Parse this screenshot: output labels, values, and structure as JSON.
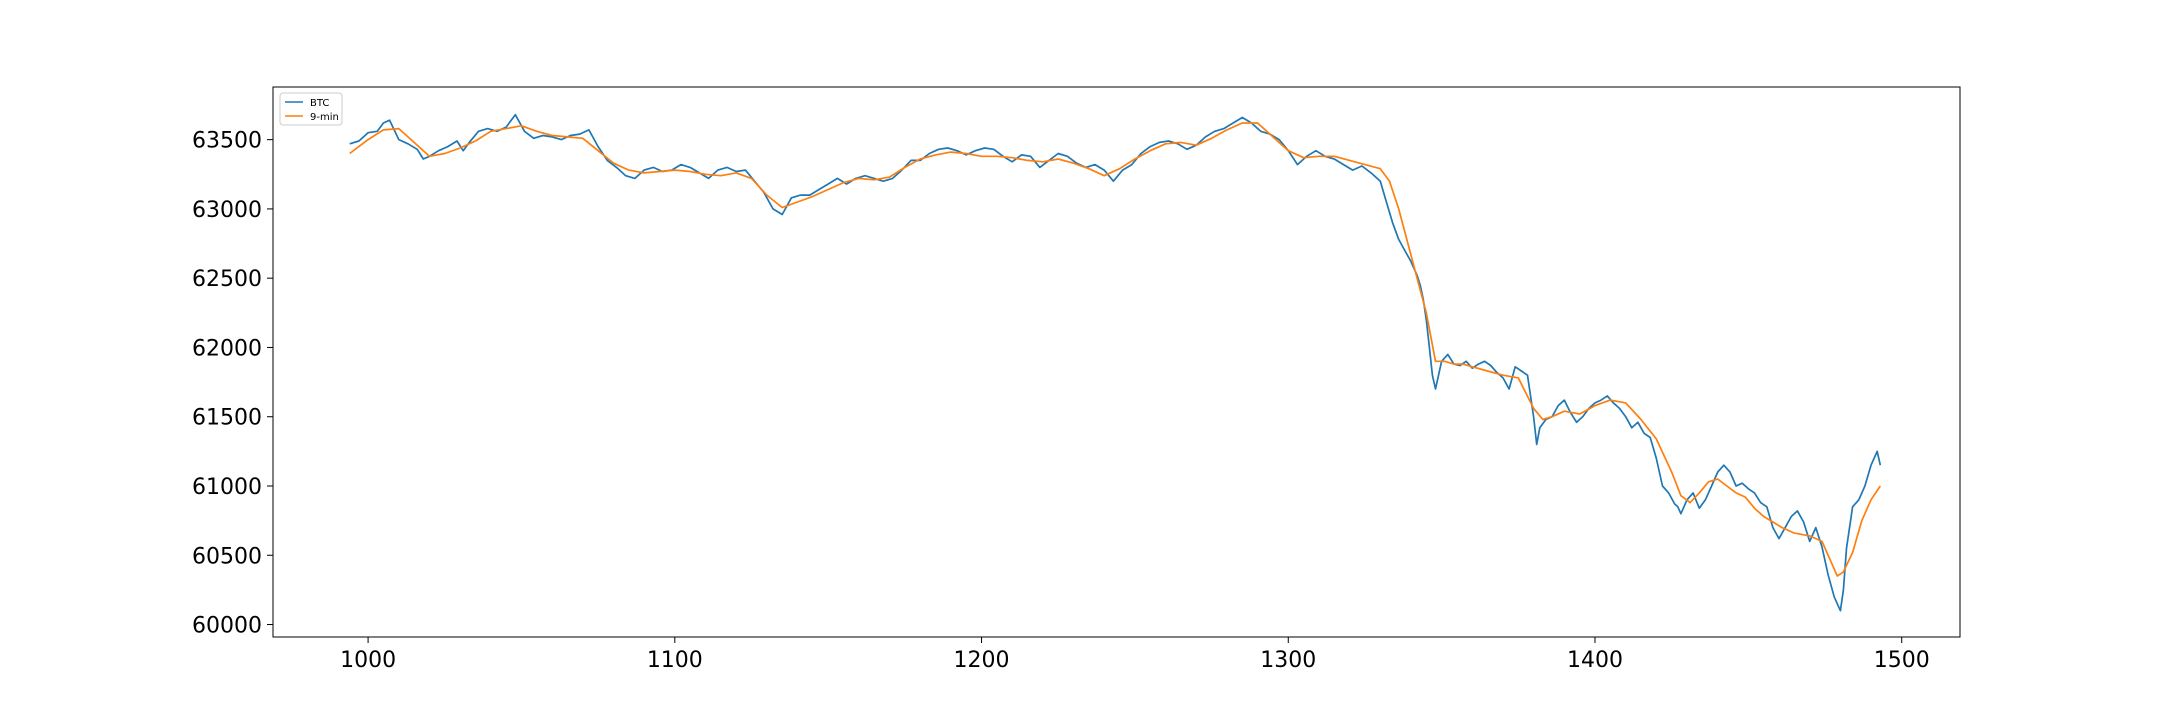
{
  "chart_data": {
    "type": "line",
    "title": "",
    "xlabel": "",
    "ylabel": "",
    "xlim": [
      969,
      1519
    ],
    "ylim": [
      59910,
      63880
    ],
    "grid": false,
    "legend": "top-left",
    "x_ticks": [
      1000,
      1100,
      1200,
      1300,
      1400,
      1500
    ],
    "y_ticks": [
      60000,
      60500,
      61000,
      61500,
      62000,
      62500,
      63000,
      63500
    ],
    "x_tick_labels": [
      "1000",
      "1100",
      "1200",
      "1300",
      "1400",
      "1500"
    ],
    "y_tick_labels": [
      "60000",
      "60500",
      "61000",
      "61500",
      "62000",
      "62500",
      "63000",
      "63500"
    ],
    "series": [
      {
        "name": "BTC",
        "color": "#1f77b4",
        "x": [
          994,
          997,
          1000,
          1003,
          1005,
          1007,
          1010,
          1013,
          1016,
          1018,
          1020,
          1023,
          1026,
          1029,
          1031,
          1033,
          1036,
          1039,
          1042,
          1045,
          1048,
          1051,
          1054,
          1057,
          1060,
          1063,
          1066,
          1069,
          1072,
          1075,
          1078,
          1081,
          1084,
          1087,
          1090,
          1093,
          1096,
          1099,
          1102,
          1105,
          1108,
          1111,
          1114,
          1117,
          1120,
          1123,
          1126,
          1129,
          1132,
          1135,
          1138,
          1141,
          1144,
          1147,
          1150,
          1153,
          1156,
          1159,
          1162,
          1165,
          1168,
          1171,
          1174,
          1177,
          1180,
          1183,
          1186,
          1189,
          1192,
          1195,
          1198,
          1201,
          1204,
          1207,
          1210,
          1213,
          1216,
          1219,
          1222,
          1225,
          1228,
          1231,
          1234,
          1237,
          1240,
          1243,
          1246,
          1249,
          1252,
          1255,
          1258,
          1261,
          1264,
          1267,
          1270,
          1273,
          1276,
          1279,
          1282,
          1285,
          1288,
          1291,
          1294,
          1297,
          1300,
          1303,
          1306,
          1309,
          1312,
          1315,
          1318,
          1321,
          1324,
          1327,
          1330,
          1332,
          1334,
          1336,
          1338,
          1340,
          1342,
          1343,
          1344,
          1345,
          1346,
          1347,
          1348,
          1350,
          1352,
          1354,
          1356,
          1358,
          1360,
          1362,
          1364,
          1366,
          1368,
          1370,
          1372,
          1374,
          1376,
          1378,
          1380,
          1381,
          1382,
          1384,
          1386,
          1388,
          1390,
          1392,
          1394,
          1396,
          1398,
          1400,
          1402,
          1404,
          1406,
          1408,
          1410,
          1412,
          1414,
          1416,
          1418,
          1420,
          1422,
          1424,
          1426,
          1427,
          1428,
          1430,
          1432,
          1434,
          1436,
          1438,
          1440,
          1442,
          1444,
          1446,
          1448,
          1450,
          1452,
          1454,
          1456,
          1458,
          1460,
          1462,
          1464,
          1466,
          1468,
          1470,
          1472,
          1474,
          1476,
          1478,
          1479,
          1480,
          1481,
          1482,
          1484,
          1486,
          1488,
          1490,
          1492,
          1493
        ],
        "values": [
          63470,
          63490,
          63550,
          63560,
          63620,
          63640,
          63500,
          63470,
          63430,
          63360,
          63380,
          63420,
          63450,
          63490,
          63420,
          63480,
          63560,
          63580,
          63560,
          63590,
          63680,
          63560,
          63510,
          63530,
          63520,
          63500,
          63530,
          63540,
          63570,
          63450,
          63350,
          63300,
          63240,
          63220,
          63280,
          63300,
          63270,
          63280,
          63320,
          63300,
          63260,
          63220,
          63280,
          63300,
          63270,
          63280,
          63200,
          63120,
          63000,
          62960,
          63080,
          63100,
          63100,
          63140,
          63180,
          63220,
          63180,
          63220,
          63240,
          63220,
          63200,
          63220,
          63280,
          63350,
          63350,
          63400,
          63430,
          63440,
          63420,
          63390,
          63420,
          63440,
          63430,
          63380,
          63340,
          63390,
          63380,
          63300,
          63350,
          63400,
          63380,
          63330,
          63300,
          63320,
          63280,
          63200,
          63280,
          63320,
          63400,
          63450,
          63480,
          63490,
          63470,
          63430,
          63460,
          63520,
          63560,
          63580,
          63620,
          63660,
          63620,
          63560,
          63540,
          63500,
          63420,
          63320,
          63380,
          63420,
          63380,
          63360,
          63320,
          63280,
          63310,
          63260,
          63200,
          63050,
          62900,
          62780,
          62700,
          62620,
          62520,
          62450,
          62350,
          62200,
          62000,
          61800,
          61700,
          61900,
          61950,
          61880,
          61870,
          61900,
          61850,
          61880,
          61900,
          61870,
          61820,
          61780,
          61700,
          61860,
          61830,
          61800,
          61500,
          61300,
          61420,
          61480,
          61500,
          61580,
          61620,
          61530,
          61460,
          61500,
          61560,
          61600,
          61620,
          61650,
          61600,
          61560,
          61500,
          61420,
          61460,
          61380,
          61350,
          61200,
          61000,
          60950,
          60870,
          60850,
          60800,
          60900,
          60950,
          60840,
          60900,
          61000,
          61100,
          61150,
          61100,
          61000,
          61020,
          60980,
          60950,
          60880,
          60850,
          60700,
          60620,
          60700,
          60780,
          60820,
          60740,
          60600,
          60700,
          60560,
          60360,
          60200,
          60150,
          60100,
          60250,
          60550,
          60850,
          60900,
          61000,
          61150,
          61250,
          61150
        ]
      },
      {
        "name": "9-min",
        "color": "#ff7f0e",
        "x": [
          994,
          1000,
          1005,
          1010,
          1015,
          1020,
          1025,
          1030,
          1035,
          1040,
          1045,
          1050,
          1055,
          1060,
          1065,
          1070,
          1075,
          1080,
          1085,
          1090,
          1095,
          1100,
          1105,
          1110,
          1115,
          1120,
          1125,
          1130,
          1135,
          1140,
          1145,
          1150,
          1155,
          1160,
          1165,
          1170,
          1175,
          1180,
          1185,
          1190,
          1195,
          1200,
          1205,
          1210,
          1215,
          1220,
          1225,
          1230,
          1235,
          1240,
          1245,
          1250,
          1255,
          1260,
          1265,
          1270,
          1275,
          1280,
          1285,
          1290,
          1295,
          1300,
          1305,
          1310,
          1315,
          1320,
          1325,
          1330,
          1333,
          1336,
          1339,
          1342,
          1345,
          1348,
          1351,
          1354,
          1357,
          1360,
          1365,
          1370,
          1375,
          1380,
          1383,
          1386,
          1390,
          1395,
          1400,
          1405,
          1410,
          1415,
          1420,
          1425,
          1428,
          1431,
          1434,
          1437,
          1440,
          1443,
          1446,
          1449,
          1452,
          1455,
          1458,
          1461,
          1465,
          1470,
          1474,
          1477,
          1479,
          1481,
          1484,
          1487,
          1490,
          1493
        ],
        "values": [
          63400,
          63500,
          63570,
          63580,
          63480,
          63380,
          63400,
          63440,
          63490,
          63560,
          63580,
          63600,
          63560,
          63530,
          63520,
          63510,
          63420,
          63330,
          63280,
          63260,
          63270,
          63280,
          63270,
          63250,
          63240,
          63260,
          63220,
          63100,
          63010,
          63050,
          63090,
          63140,
          63190,
          63220,
          63210,
          63230,
          63300,
          63360,
          63390,
          63410,
          63400,
          63380,
          63380,
          63370,
          63350,
          63340,
          63360,
          63330,
          63290,
          63240,
          63290,
          63360,
          63420,
          63470,
          63480,
          63460,
          63510,
          63570,
          63620,
          63620,
          63520,
          63420,
          63370,
          63380,
          63380,
          63350,
          63320,
          63290,
          63200,
          63000,
          62750,
          62500,
          62250,
          61900,
          61900,
          61880,
          61880,
          61860,
          61830,
          61800,
          61780,
          61560,
          61480,
          61500,
          61540,
          61520,
          61580,
          61620,
          61600,
          61480,
          61340,
          61100,
          60930,
          60880,
          60950,
          61030,
          61050,
          61000,
          60950,
          60920,
          60840,
          60780,
          60740,
          60700,
          60660,
          60640,
          60600,
          60450,
          60350,
          60380,
          60520,
          60750,
          60900,
          61000
        ]
      }
    ]
  }
}
